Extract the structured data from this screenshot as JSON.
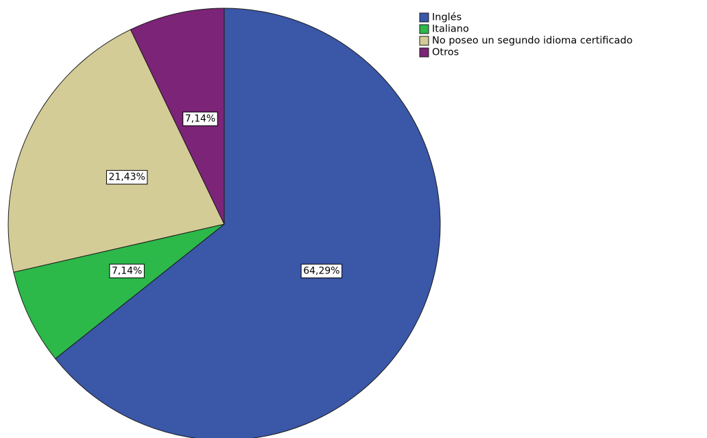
{
  "chart_data": {
    "type": "pie",
    "title": "",
    "categories": [
      "Inglés",
      "Italiano",
      "No poseo un segundo idioma certificado",
      "Otros"
    ],
    "values": [
      64.29,
      7.14,
      21.43,
      7.14
    ],
    "data_labels": [
      "64,29%",
      "7,14%",
      "21,43%",
      "7,14%"
    ],
    "colors": [
      "#3a57a8",
      "#2db84a",
      "#d4cc97",
      "#7c2478"
    ],
    "start_angle_deg": 0,
    "direction": "clockwise",
    "legend_position": "top-right",
    "title_color": "#4a7ac4"
  }
}
